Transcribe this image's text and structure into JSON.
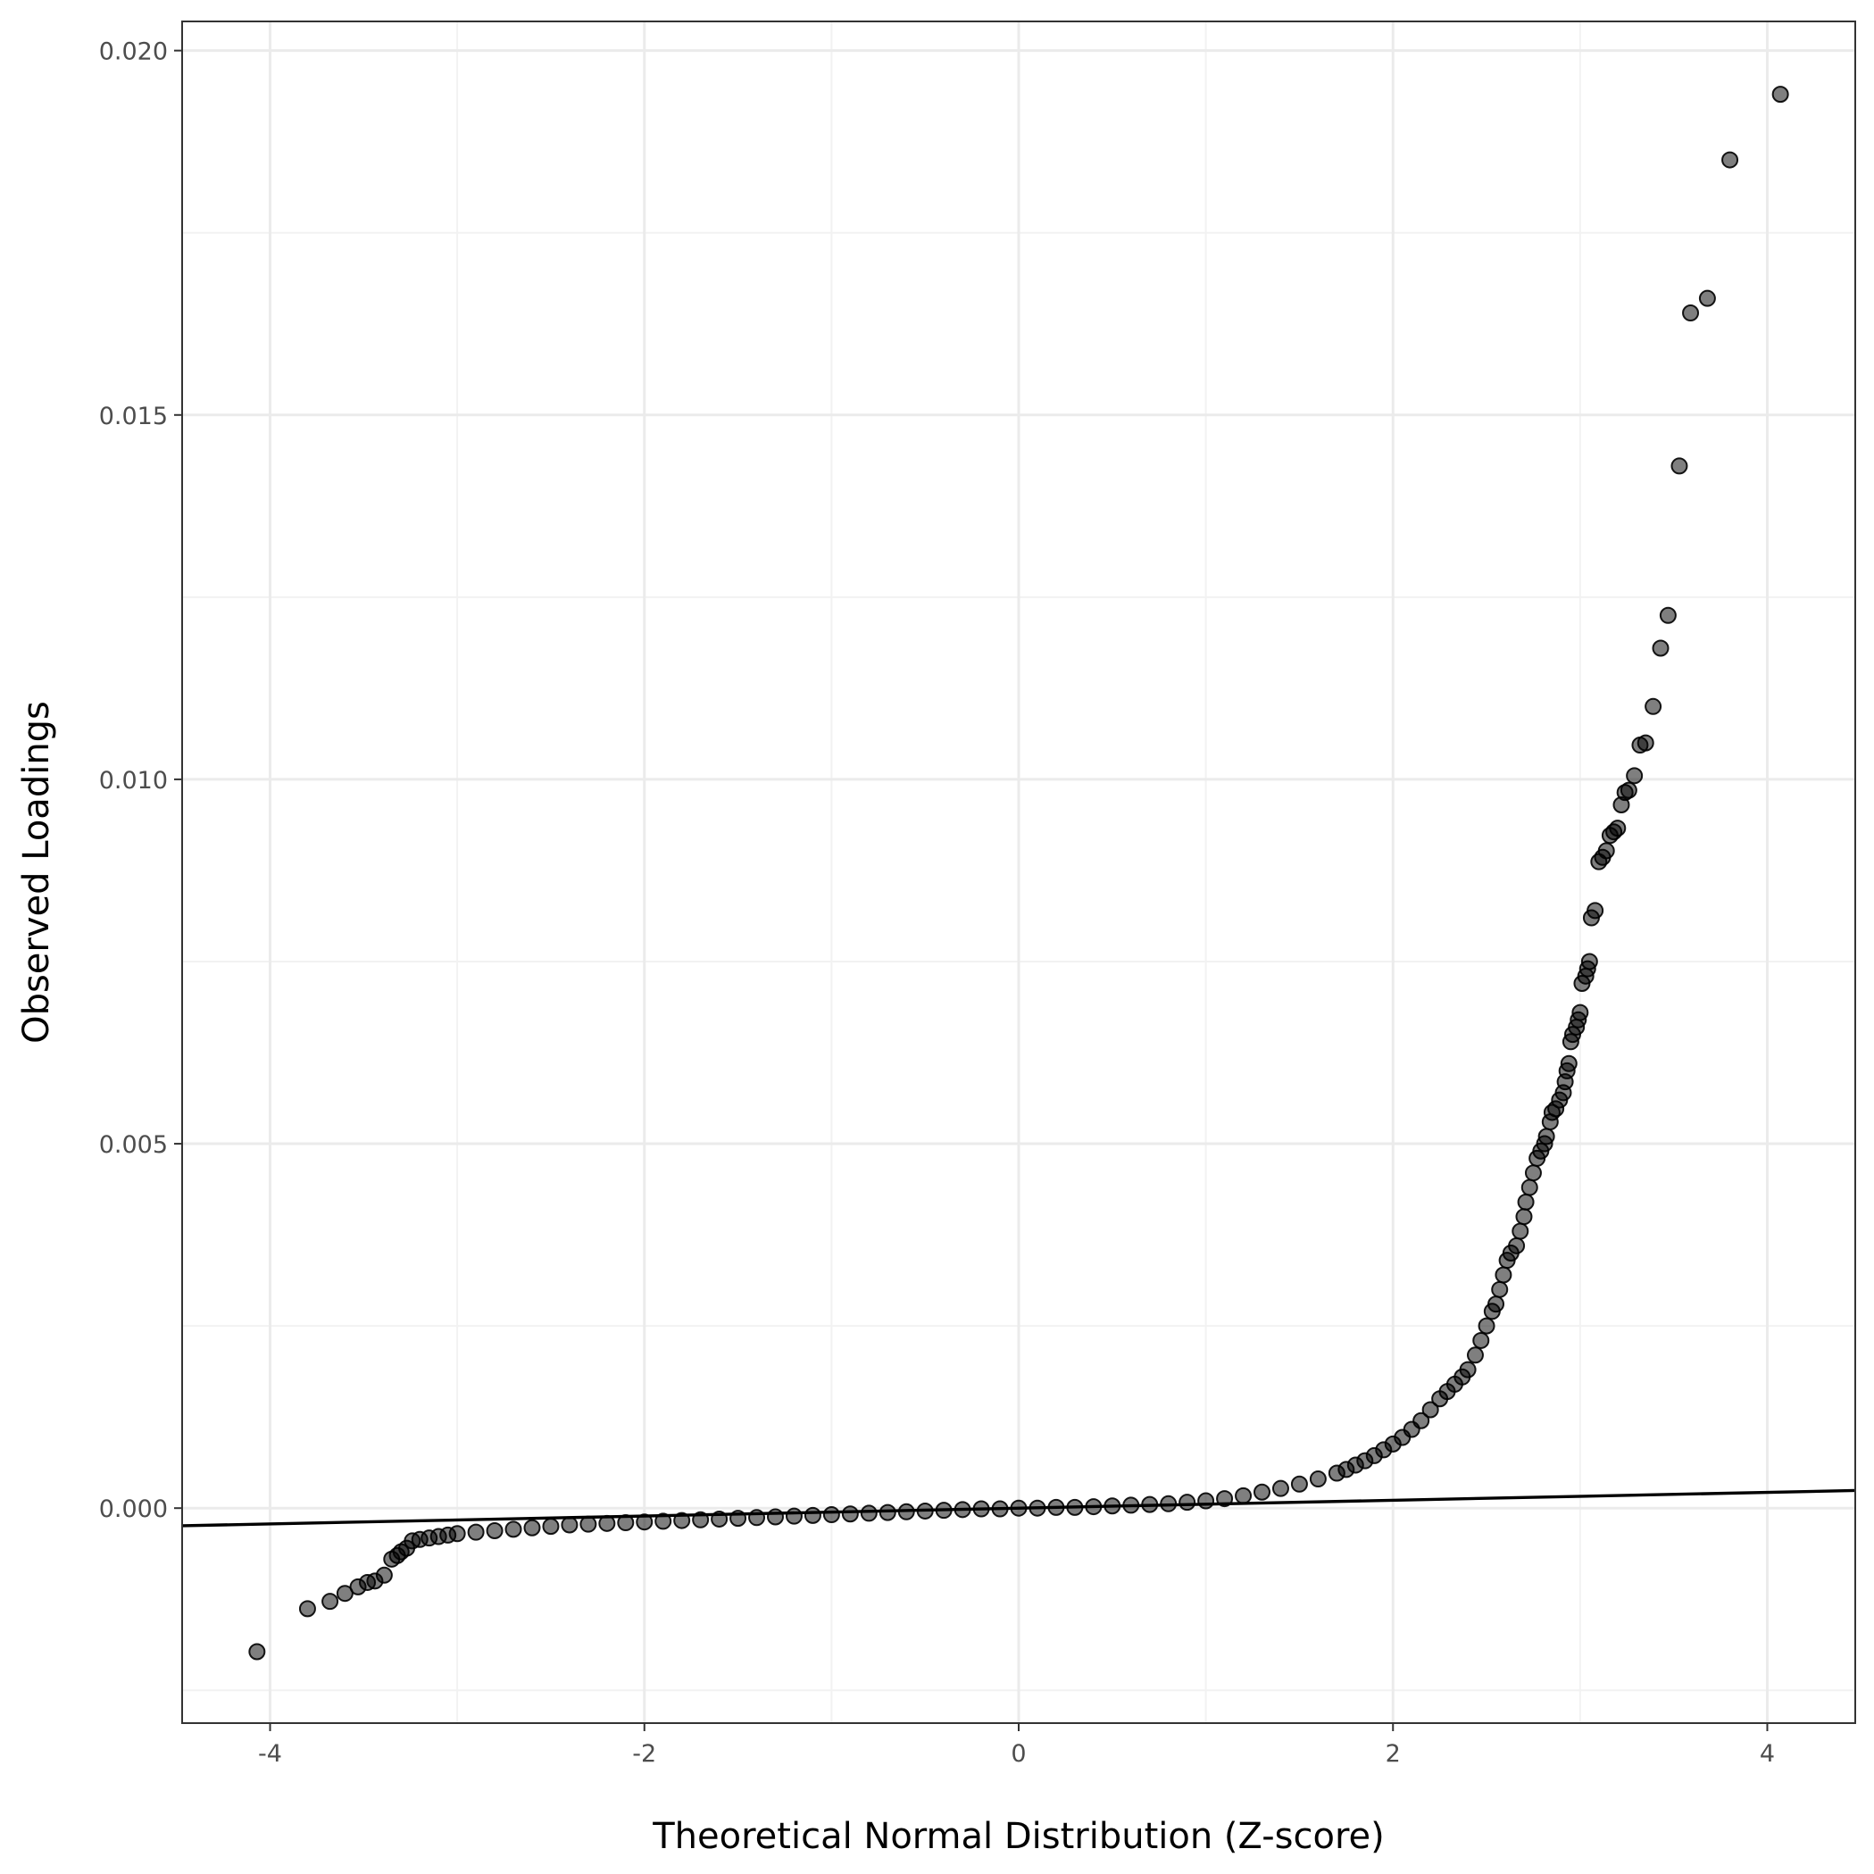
{
  "chart_data": {
    "type": "scatter",
    "title": "",
    "xlabel": "Theoretical Normal Distribution (Z-score)",
    "ylabel": "Observed Loadings",
    "xlim": [
      -4.47,
      4.47
    ],
    "ylim": [
      -0.00295,
      0.0204
    ],
    "x_ticks": [
      -4,
      -2,
      0,
      2,
      4
    ],
    "x_tick_labels": [
      "-4",
      "-2",
      "0",
      "2",
      "4"
    ],
    "y_ticks": [
      0.0,
      0.005,
      0.01,
      0.015,
      0.02
    ],
    "y_tick_labels": [
      "0.000",
      "0.005",
      "0.010",
      "0.015",
      "0.020"
    ],
    "grid": true,
    "legend": "none",
    "point_color": "#000000",
    "point_opacity": 0.5,
    "reference_line": {
      "slope": 5.41e-05,
      "intercept": -2e-07,
      "color": "#000000"
    },
    "series": [
      {
        "values": [
          [
            4.07,
            0.0194
          ],
          [
            3.8,
            0.0185
          ],
          [
            3.68,
            0.0166
          ],
          [
            3.59,
            0.0164
          ],
          [
            3.53,
            0.0143
          ],
          [
            3.47,
            0.01225
          ],
          [
            3.43,
            0.0118
          ],
          [
            3.39,
            0.011
          ],
          [
            3.35,
            0.0105
          ],
          [
            3.32,
            0.01047
          ],
          [
            3.29,
            0.01005
          ],
          [
            3.26,
            0.00985
          ],
          [
            3.24,
            0.00982
          ],
          [
            3.22,
            0.00965
          ],
          [
            3.2,
            0.00933
          ],
          [
            3.18,
            0.00928
          ],
          [
            3.16,
            0.00923
          ],
          [
            3.14,
            0.00902
          ],
          [
            3.12,
            0.00893
          ],
          [
            3.1,
            0.00887
          ],
          [
            3.08,
            0.0082
          ],
          [
            3.06,
            0.0081
          ],
          [
            3.05,
            0.0075
          ],
          [
            3.04,
            0.0074
          ],
          [
            3.03,
            0.0073
          ],
          [
            3.01,
            0.0072
          ],
          [
            3.0,
            0.0068
          ],
          [
            2.99,
            0.0067
          ],
          [
            2.98,
            0.0066
          ],
          [
            2.96,
            0.0065
          ],
          [
            2.95,
            0.0064
          ],
          [
            2.94,
            0.0061
          ],
          [
            2.93,
            0.006
          ],
          [
            2.92,
            0.00585
          ],
          [
            2.91,
            0.0057
          ],
          [
            2.89,
            0.0056
          ],
          [
            2.87,
            0.00548
          ],
          [
            2.85,
            0.00543
          ],
          [
            2.84,
            0.0053
          ],
          [
            2.82,
            0.0051
          ],
          [
            2.81,
            0.005
          ],
          [
            2.79,
            0.0049
          ],
          [
            2.77,
            0.0048
          ],
          [
            2.75,
            0.0046
          ],
          [
            2.73,
            0.0044
          ],
          [
            2.71,
            0.0042
          ],
          [
            2.7,
            0.004
          ],
          [
            2.68,
            0.0038
          ],
          [
            2.66,
            0.0036
          ],
          [
            2.63,
            0.0035
          ],
          [
            2.61,
            0.0034
          ],
          [
            2.59,
            0.0032
          ],
          [
            2.57,
            0.003
          ],
          [
            2.55,
            0.0028
          ],
          [
            2.53,
            0.0027
          ],
          [
            2.5,
            0.0025
          ],
          [
            2.47,
            0.0023
          ],
          [
            2.44,
            0.0021
          ],
          [
            2.4,
            0.0019
          ],
          [
            2.37,
            0.0018
          ],
          [
            2.33,
            0.0017
          ],
          [
            2.29,
            0.0016
          ],
          [
            2.25,
            0.0015
          ],
          [
            2.2,
            0.00135
          ],
          [
            2.15,
            0.0012
          ],
          [
            2.1,
            0.00108
          ],
          [
            2.05,
            0.00097
          ],
          [
            2.0,
            0.00088
          ],
          [
            1.95,
            0.0008
          ],
          [
            1.9,
            0.00072
          ],
          [
            1.85,
            0.00065
          ],
          [
            1.8,
            0.00059
          ],
          [
            1.75,
            0.00053
          ],
          [
            1.7,
            0.00048
          ],
          [
            1.6,
            0.0004
          ],
          [
            1.5,
            0.00033
          ],
          [
            1.4,
            0.00027
          ],
          [
            1.3,
            0.00022
          ],
          [
            1.2,
            0.00017
          ],
          [
            1.1,
            0.00013
          ],
          [
            1.0,
            0.0001
          ],
          [
            0.9,
            8e-05
          ],
          [
            0.8,
            6e-05
          ],
          [
            0.7,
            5e-05
          ],
          [
            0.6,
            4e-05
          ],
          [
            0.5,
            3e-05
          ],
          [
            0.4,
            2e-05
          ],
          [
            0.3,
            1e-05
          ],
          [
            0.2,
            1e-05
          ],
          [
            0.1,
            0.0
          ],
          [
            0.0,
            0.0
          ],
          [
            -0.1,
            -1e-05
          ],
          [
            -0.2,
            -1e-05
          ],
          [
            -0.3,
            -2e-05
          ],
          [
            -0.4,
            -3e-05
          ],
          [
            -0.5,
            -4e-05
          ],
          [
            -0.6,
            -5e-05
          ],
          [
            -0.7,
            -6e-05
          ],
          [
            -0.8,
            -7e-05
          ],
          [
            -0.9,
            -8e-05
          ],
          [
            -1.0,
            -9e-05
          ],
          [
            -1.1,
            -0.0001
          ],
          [
            -1.2,
            -0.00011
          ],
          [
            -1.3,
            -0.00012
          ],
          [
            -1.4,
            -0.00013
          ],
          [
            -1.5,
            -0.00014
          ],
          [
            -1.6,
            -0.00015
          ],
          [
            -1.7,
            -0.00016
          ],
          [
            -1.8,
            -0.00017
          ],
          [
            -1.9,
            -0.00018
          ],
          [
            -2.0,
            -0.00019
          ],
          [
            -2.1,
            -0.0002
          ],
          [
            -2.2,
            -0.00021
          ],
          [
            -2.3,
            -0.00022
          ],
          [
            -2.4,
            -0.00023
          ],
          [
            -2.5,
            -0.00025
          ],
          [
            -2.6,
            -0.00027
          ],
          [
            -2.7,
            -0.00029
          ],
          [
            -2.8,
            -0.00031
          ],
          [
            -2.9,
            -0.00033
          ],
          [
            -3.0,
            -0.00035
          ],
          [
            -3.05,
            -0.00037
          ],
          [
            -3.1,
            -0.00039
          ],
          [
            -3.15,
            -0.00041
          ],
          [
            -3.2,
            -0.00043
          ],
          [
            -3.24,
            -0.00045
          ],
          [
            -3.27,
            -0.00055
          ],
          [
            -3.3,
            -0.0006
          ],
          [
            -3.32,
            -0.00065
          ],
          [
            -3.35,
            -0.0007
          ],
          [
            -3.39,
            -0.00092
          ],
          [
            -3.44,
            -0.001
          ],
          [
            -3.48,
            -0.00102
          ],
          [
            -3.53,
            -0.00108
          ],
          [
            -3.6,
            -0.00117
          ],
          [
            -3.68,
            -0.00128
          ],
          [
            -3.8,
            -0.00138
          ],
          [
            -4.07,
            -0.00197
          ]
        ]
      }
    ]
  }
}
